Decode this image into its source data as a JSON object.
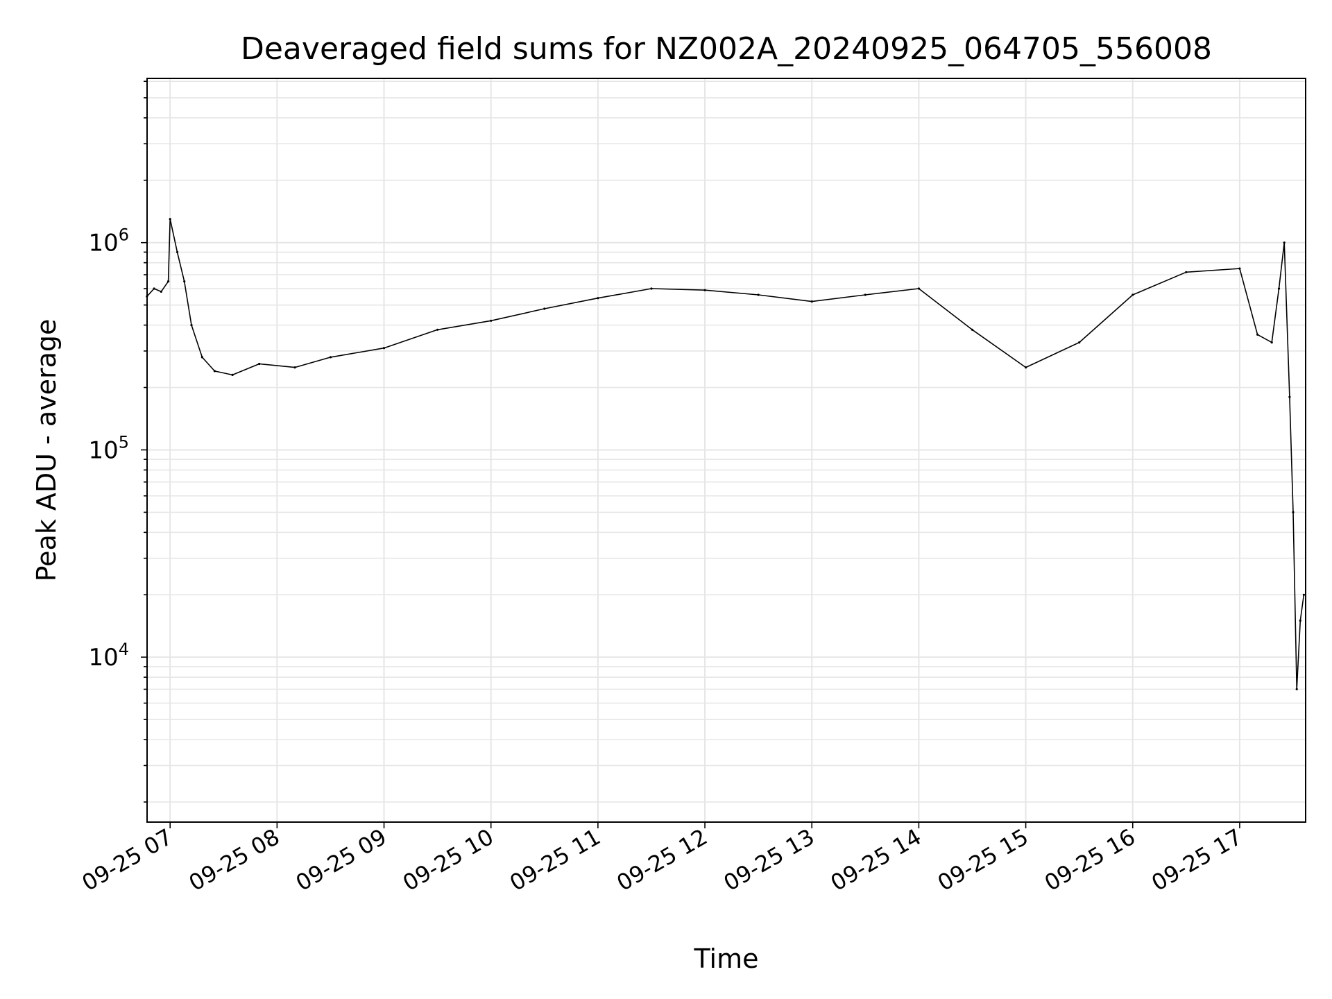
{
  "chart_data": {
    "type": "line",
    "title": "Deaveraged field sums for NZ002A_20240925_064705_556008",
    "xlabel": "Time",
    "ylabel": "Peak ADU - average",
    "y_scale": "log",
    "ylim": [
      1600,
      6200000
    ],
    "xlim": [
      "2024-09-25T06:47:05",
      "2024-09-25T17:37:00"
    ],
    "x_ticks": [
      {
        "value": "2024-09-25T07:00",
        "label": "09-25 07"
      },
      {
        "value": "2024-09-25T08:00",
        "label": "09-25 08"
      },
      {
        "value": "2024-09-25T09:00",
        "label": "09-25 09"
      },
      {
        "value": "2024-09-25T10:00",
        "label": "09-25 10"
      },
      {
        "value": "2024-09-25T11:00",
        "label": "09-25 11"
      },
      {
        "value": "2024-09-25T12:00",
        "label": "09-25 12"
      },
      {
        "value": "2024-09-25T13:00",
        "label": "09-25 13"
      },
      {
        "value": "2024-09-25T14:00",
        "label": "09-25 14"
      },
      {
        "value": "2024-09-25T15:00",
        "label": "09-25 15"
      },
      {
        "value": "2024-09-25T16:00",
        "label": "09-25 16"
      },
      {
        "value": "2024-09-25T17:00",
        "label": "09-25 17"
      }
    ],
    "y_ticks": [
      {
        "value": 10000,
        "base": "10",
        "exp": "4"
      },
      {
        "value": 100000,
        "base": "10",
        "exp": "5"
      },
      {
        "value": 1000000,
        "base": "10",
        "exp": "6"
      }
    ],
    "grid": true,
    "line_color": "#000000",
    "grid_color": "#e6e6e6",
    "series": [
      {
        "x": [
          "2024-09-25T06:47",
          "2024-09-25T06:51",
          "2024-09-25T06:55",
          "2024-09-25T06:59",
          "2024-09-25T07:00",
          "2024-09-25T07:04",
          "2024-09-25T07:08",
          "2024-09-25T07:12",
          "2024-09-25T07:18",
          "2024-09-25T07:25",
          "2024-09-25T07:35",
          "2024-09-25T07:50",
          "2024-09-25T08:10",
          "2024-09-25T08:30",
          "2024-09-25T09:00",
          "2024-09-25T09:30",
          "2024-09-25T10:00",
          "2024-09-25T10:30",
          "2024-09-25T11:00",
          "2024-09-25T11:30",
          "2024-09-25T12:00",
          "2024-09-25T12:30",
          "2024-09-25T13:00",
          "2024-09-25T13:30",
          "2024-09-25T14:00",
          "2024-09-25T14:30",
          "2024-09-25T15:00",
          "2024-09-25T15:30",
          "2024-09-25T16:00",
          "2024-09-25T16:30",
          "2024-09-25T17:00",
          "2024-09-25T17:10",
          "2024-09-25T17:18",
          "2024-09-25T17:22",
          "2024-09-25T17:25",
          "2024-09-25T17:28",
          "2024-09-25T17:30",
          "2024-09-25T17:32",
          "2024-09-25T17:34",
          "2024-09-25T17:36"
        ],
        "y": [
          550000,
          600000,
          580000,
          650000,
          1300000,
          900000,
          650000,
          400000,
          280000,
          240000,
          230000,
          260000,
          250000,
          280000,
          310000,
          380000,
          420000,
          480000,
          540000,
          600000,
          590000,
          560000,
          520000,
          560000,
          600000,
          380000,
          250000,
          330000,
          560000,
          720000,
          750000,
          360000,
          330000,
          600000,
          1000000,
          180000,
          50000,
          7000,
          15000,
          20000
        ]
      }
    ]
  }
}
